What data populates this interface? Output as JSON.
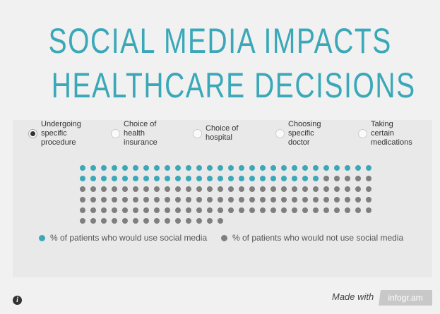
{
  "title": {
    "line1": "SOCIAL MEDIA IMPACTS",
    "line2": "HEALTHCARE DECISIONS"
  },
  "options": [
    {
      "label": [
        "Undergoing",
        "specific",
        "procedure"
      ],
      "selected": true
    },
    {
      "label": [
        "Choice of",
        "health",
        "insurance"
      ],
      "selected": false
    },
    {
      "label": [
        "Choice of",
        "hospital"
      ],
      "selected": false
    },
    {
      "label": [
        "Choosing",
        "specific",
        "doctor"
      ],
      "selected": false
    },
    {
      "label": [
        "Taking",
        "certain",
        "medications"
      ],
      "selected": false
    }
  ],
  "chart_data": {
    "type": "pictogram",
    "selected_category": "Undergoing specific procedure",
    "columns": 28,
    "series": [
      {
        "name": "% of patients who would use social media",
        "count": 51,
        "color": "#3aa8b8"
      },
      {
        "name": "% of patients who would not use social media",
        "count": 103,
        "color": "#7f7f7f"
      }
    ]
  },
  "footer": {
    "made_with": "Made with",
    "brand": "infogr.am",
    "info_icon": "info-icon"
  }
}
